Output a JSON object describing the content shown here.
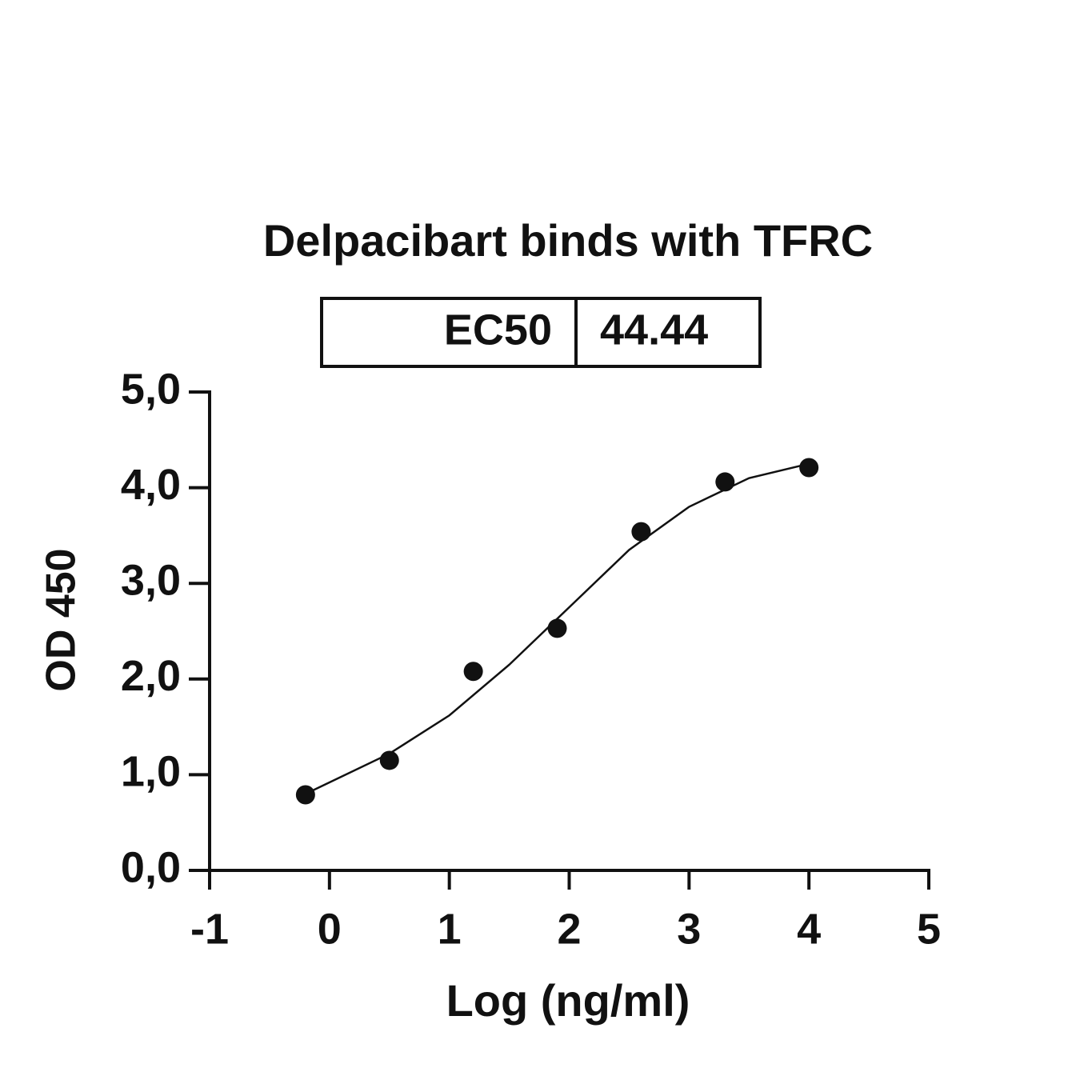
{
  "chart_data": {
    "type": "scatter",
    "title": "Delpacibart binds with TFRC",
    "table": {
      "label": "EC50",
      "value": "44.44"
    },
    "x_label": "Log (ng/ml)",
    "y_label": "OD 450",
    "x": [
      -0.2,
      0.5,
      1.2,
      1.9,
      2.6,
      3.3,
      4.0
    ],
    "values": [
      0.79,
      1.15,
      2.08,
      2.53,
      3.54,
      4.06,
      4.21
    ],
    "curve_x": [
      -0.2,
      0.0,
      0.5,
      1.0,
      1.5,
      2.0,
      2.5,
      3.0,
      3.5,
      4.0
    ],
    "curve_y": [
      0.8,
      0.92,
      1.22,
      1.62,
      2.15,
      2.75,
      3.35,
      3.8,
      4.1,
      4.25
    ],
    "color": "#111111",
    "xlim": [
      -1,
      5
    ],
    "xticks": [
      -1,
      0,
      1,
      2,
      3,
      4,
      5
    ],
    "ylim": [
      0,
      5
    ],
    "yticks": [
      {
        "value": 0,
        "label": "0,0"
      },
      {
        "value": 1,
        "label": "1,0"
      },
      {
        "value": 2,
        "label": "2,0"
      },
      {
        "value": 3,
        "label": "3,0"
      },
      {
        "value": 4,
        "label": "4,0"
      },
      {
        "value": 5,
        "label": "5,0"
      }
    ]
  }
}
